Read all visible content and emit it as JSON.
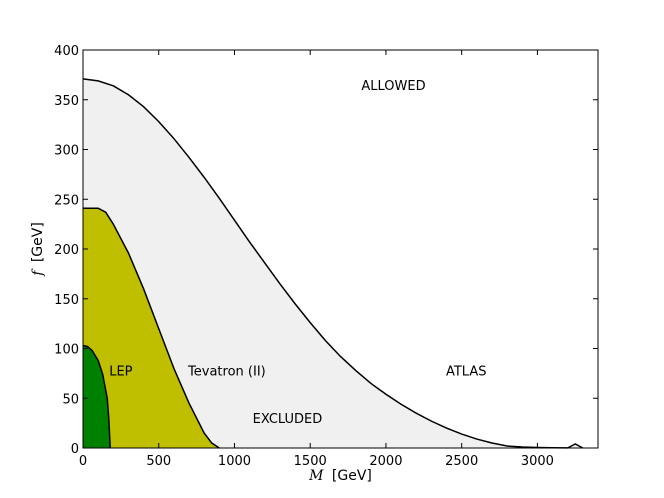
{
  "chart_data": {
    "type": "area",
    "xlabel_var": "M",
    "xlabel_unit": "[GeV]",
    "ylabel_var": "f",
    "ylabel_unit": "[GeV]",
    "xlim": [
      0,
      3400
    ],
    "ylim": [
      0,
      400
    ],
    "xticks": [
      0,
      500,
      1000,
      1500,
      2000,
      2500,
      3000
    ],
    "yticks": [
      0,
      50,
      100,
      150,
      200,
      250,
      300,
      350,
      400
    ],
    "grid": false,
    "series": [
      {
        "name": "ATLAS",
        "fill": "#f0f0f0",
        "x": [
          0,
          100,
          200,
          300,
          400,
          500,
          600,
          700,
          800,
          900,
          1000,
          1100,
          1200,
          1300,
          1400,
          1500,
          1600,
          1700,
          1800,
          1900,
          2000,
          2100,
          2200,
          2300,
          2400,
          2500,
          2600,
          2700,
          2800,
          2900,
          3000,
          3100,
          3200,
          3250,
          3300
        ],
        "y": [
          371,
          369,
          364,
          355,
          343,
          328,
          311,
          292,
          272,
          251,
          229,
          207,
          186,
          165,
          145,
          126,
          108,
          92,
          78,
          65,
          54,
          44,
          35,
          27,
          20,
          14,
          9,
          5,
          2,
          1,
          0.5,
          0.3,
          0.1,
          4,
          0
        ]
      },
      {
        "name": "Tevatron (II)",
        "fill": "#bfbf00",
        "x": [
          0,
          100,
          150,
          200,
          300,
          400,
          500,
          600,
          700,
          800,
          850,
          900
        ],
        "y": [
          241,
          241,
          237,
          225,
          196,
          160,
          120,
          80,
          45,
          15,
          5,
          0
        ]
      },
      {
        "name": "LEP",
        "fill": "#008000",
        "x": [
          0,
          30,
          60,
          100,
          130,
          160,
          170,
          180
        ],
        "y": [
          103,
          102,
          98,
          88,
          74,
          50,
          30,
          0
        ]
      }
    ],
    "annotations": [
      {
        "text": "ALLOWED",
        "x": 2050,
        "y": 365
      },
      {
        "text": "EXCLUDED",
        "x": 1350,
        "y": 30
      },
      {
        "text": "ATLAS",
        "x": 2530,
        "y": 78
      },
      {
        "text": "Tevatron (II)",
        "x": 950,
        "y": 78
      },
      {
        "text": "LEP",
        "x": 250,
        "y": 78
      }
    ]
  }
}
